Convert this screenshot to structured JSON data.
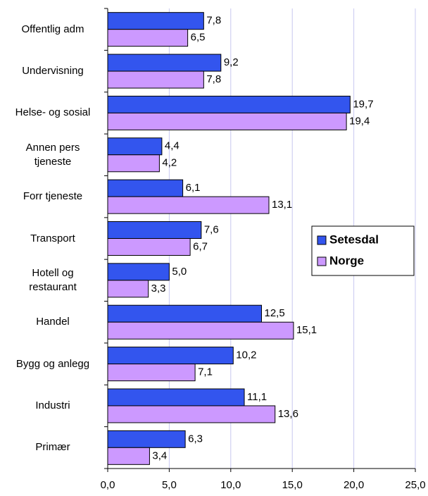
{
  "chart_data": {
    "type": "hbar",
    "categories": [
      "Offentlig adm",
      "Undervisning",
      "Helse- og sosial",
      "Annen pers\ntjeneste",
      "Forr tjeneste",
      "Transport",
      "Hotell og\nrestaurant",
      "Handel",
      "Bygg og anlegg",
      "Industri",
      "Primær"
    ],
    "series": [
      {
        "name": "Setesdal",
        "color": "#3355ee",
        "values": [
          7.8,
          9.2,
          19.7,
          4.4,
          6.1,
          7.6,
          5.0,
          12.5,
          10.2,
          11.1,
          6.3
        ],
        "value_labels": [
          "7,8",
          "9,2",
          "19,7",
          "4,4",
          "6,1",
          "7,6",
          "5,0",
          "12,5",
          "10,2",
          "11,1",
          "6,3"
        ]
      },
      {
        "name": "Norge",
        "color": "#cc99ff",
        "values": [
          6.5,
          7.8,
          19.4,
          4.2,
          13.1,
          6.7,
          3.3,
          15.1,
          7.1,
          13.6,
          3.4
        ],
        "value_labels": [
          "6,5",
          "7,8",
          "19,4",
          "4,2",
          "13,1",
          "6,7",
          "3,3",
          "15,1",
          "7,1",
          "13,6",
          "3,4"
        ]
      }
    ],
    "xlim": [
      0,
      25
    ],
    "xticks": [
      {
        "value": 0,
        "label": "0,0"
      },
      {
        "value": 5,
        "label": "5,0"
      },
      {
        "value": 10,
        "label": "10,0"
      },
      {
        "value": 15,
        "label": "15,0"
      },
      {
        "value": 20,
        "label": "20,0"
      },
      {
        "value": 25,
        "label": "25,0"
      }
    ],
    "grid": true,
    "legend": "right"
  }
}
